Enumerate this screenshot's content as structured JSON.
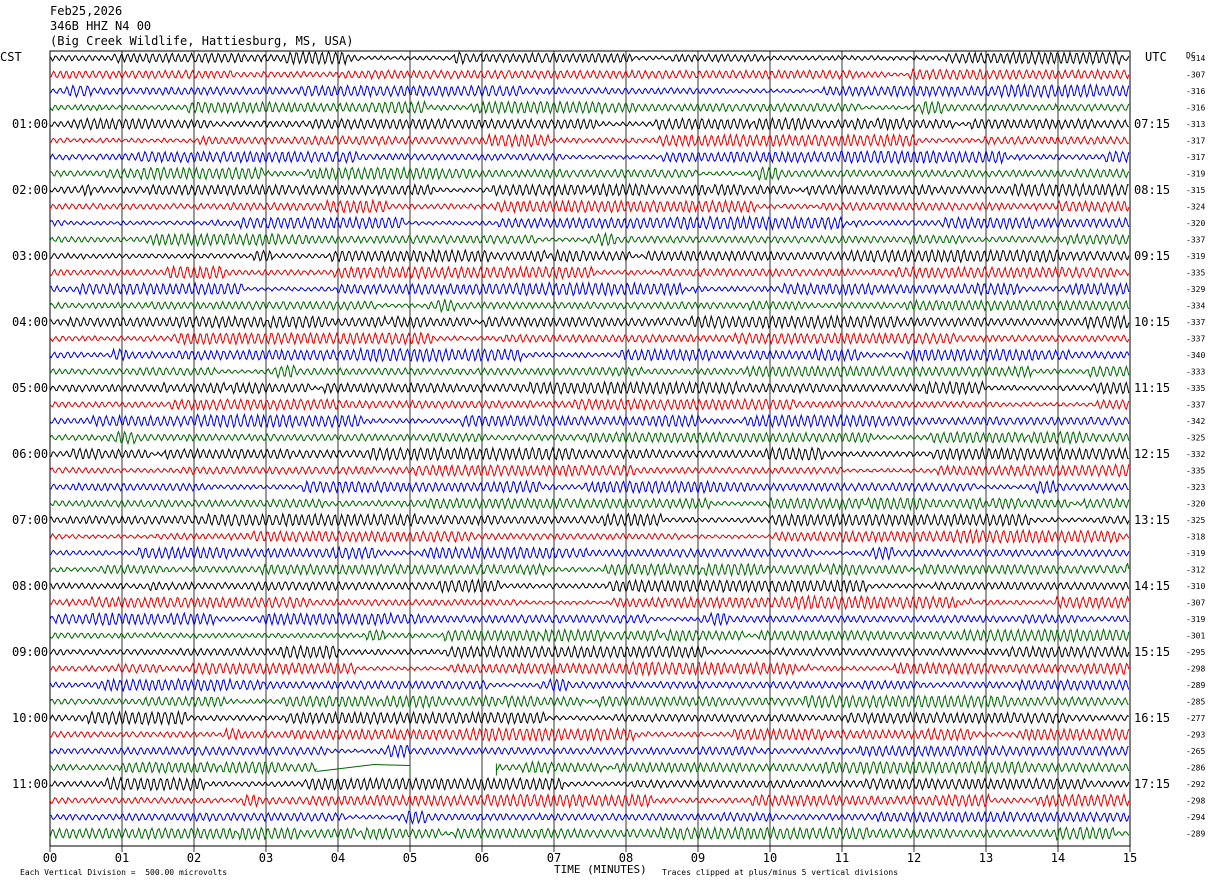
{
  "header": {
    "date": "Feb25,2026",
    "station": "346B HHZ N4 00",
    "location": "(Big Creek Wildlife, Hattiesburg, MS, USA)"
  },
  "chart_data": {
    "type": "line",
    "left_axis_label": "CST",
    "right_axis_label": "UTC",
    "dc_label": "DC",
    "xlabel": "TIME (MINUTES)",
    "x_ticks": [
      "00",
      "01",
      "02",
      "03",
      "04",
      "05",
      "06",
      "07",
      "08",
      "09",
      "10",
      "11",
      "12",
      "13",
      "14",
      "15"
    ],
    "xlim": [
      0,
      15
    ],
    "left_time_labels": [
      "01:00",
      "02:00",
      "03:00",
      "04:00",
      "05:00",
      "06:00",
      "07:00",
      "08:00",
      "09:00",
      "10:00",
      "11:00"
    ],
    "right_time_labels": [
      "07:15",
      "08:15",
      "09:15",
      "10:15",
      "11:15",
      "12:15",
      "13:15",
      "14:15",
      "15:15",
      "16:15",
      "17:15"
    ],
    "trace_colors": [
      "#000000",
      "#dd0000",
      "#0000cc",
      "#006600"
    ],
    "dc_offsets": [
      -314,
      -307,
      -316,
      -316,
      -313,
      -317,
      -317,
      -319,
      -315,
      -324,
      -320,
      -337,
      -319,
      -335,
      -329,
      -334,
      -337,
      -337,
      -340,
      -333,
      -335,
      -337,
      -342,
      -325,
      -332,
      -335,
      -323,
      -320,
      -325,
      -318,
      -319,
      -312,
      -310,
      -307,
      -319,
      -301,
      -295,
      -298,
      -289,
      -285,
      -277,
      -293,
      -265,
      -286,
      -292,
      -298,
      -294,
      -289
    ],
    "gap": {
      "trace_index": 43,
      "from_minute": 5.0,
      "to_minute": 6.2
    },
    "glitch": {
      "trace_index": 43,
      "from_minute": 3.7,
      "to_minute": 4.5
    }
  },
  "footer": {
    "scale_note": "Each Vertical Division =  500.00 microvolts",
    "clip_note": "Traces clipped at plus/minus 5 vertical divisions"
  }
}
